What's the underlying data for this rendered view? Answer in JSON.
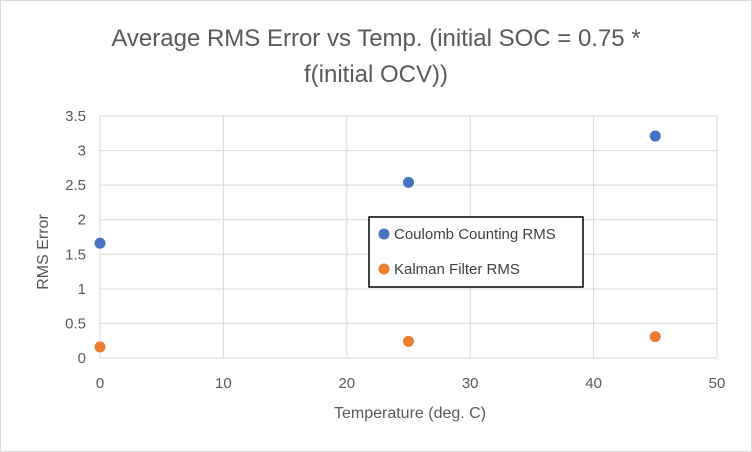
{
  "chart_data": {
    "type": "scatter",
    "title_lines": [
      "Average RMS Error vs Temp. (initial SOC = 0.75 *",
      "f(initial OCV))"
    ],
    "xlabel": "Temperature (deg. C)",
    "ylabel": "RMS Error",
    "xlim": [
      0,
      50
    ],
    "ylim": [
      0,
      3.5
    ],
    "xticks": [
      0,
      10,
      20,
      30,
      40,
      50
    ],
    "yticks": [
      0,
      0.5,
      1,
      1.5,
      2,
      2.5,
      3,
      3.5
    ],
    "grid": true,
    "legend_position": "center-right",
    "series": [
      {
        "name": "Coulomb Counting RMS",
        "color": "#4472c4",
        "points": [
          [
            0,
            1.66
          ],
          [
            25,
            2.54
          ],
          [
            45,
            3.21
          ]
        ]
      },
      {
        "name": "Kalman Filter RMS",
        "color": "#ed7d31",
        "points": [
          [
            0,
            0.16
          ],
          [
            25,
            0.24
          ],
          [
            45,
            0.31
          ]
        ]
      }
    ]
  }
}
